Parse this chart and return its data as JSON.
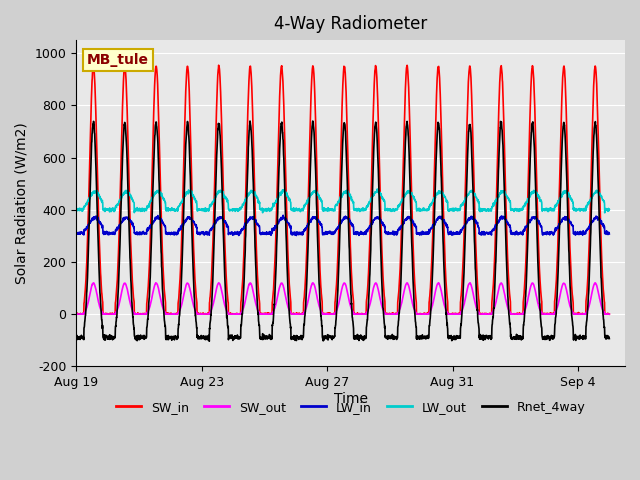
{
  "title": "4-Way Radiometer",
  "xlabel": "Time",
  "ylabel": "Solar Radiation (W/m2)",
  "ylim": [
    -200,
    1050
  ],
  "xlim": [
    0,
    17.5
  ],
  "station_label": "MB_tule",
  "x_tick_labels": [
    "Aug 19",
    "Aug 23",
    "Aug 27",
    "Aug 31",
    "Sep 4"
  ],
  "x_tick_positions": [
    0,
    4,
    8,
    12,
    16
  ],
  "background_color": "#e8e8e8",
  "plot_background": "#e8e8e8",
  "colors": {
    "SW_in": "#ff0000",
    "SW_out": "#ff00ff",
    "LW_in": "#0000cc",
    "LW_out": "#00cccc",
    "Rnet_4way": "#000000"
  },
  "num_days": 17,
  "SW_in_peak": 950,
  "SW_out_peak": 120,
  "LW_in_base": 310,
  "LW_in_peak": 370,
  "LW_out_base": 400,
  "LW_out_peak": 470,
  "Rnet_night": -90,
  "Rnet_peak": 700,
  "title_fontsize": 12,
  "label_fontsize": 10,
  "tick_fontsize": 9,
  "legend_fontsize": 9,
  "grid_color": "#ffffff",
  "grid_alpha": 1.0,
  "line_width": 1.2,
  "yticks": [
    -200,
    0,
    200,
    400,
    600,
    800,
    1000
  ]
}
